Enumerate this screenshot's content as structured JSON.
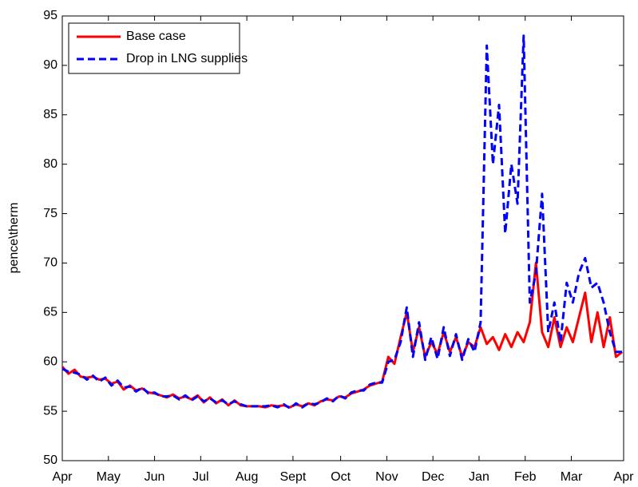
{
  "chart_data": {
    "type": "line",
    "y_label": "pence\\therm",
    "x": [
      0,
      4,
      8,
      12,
      16,
      20,
      24,
      28,
      32,
      36,
      40,
      44,
      48,
      52,
      56,
      60,
      64,
      68,
      72,
      76,
      80,
      84,
      88,
      92,
      96,
      100,
      104,
      108,
      112,
      116,
      120,
      124,
      128,
      132,
      136,
      140,
      144,
      148,
      152,
      156,
      160,
      164,
      168,
      172,
      176,
      180,
      184,
      188,
      192,
      196,
      200,
      204,
      208,
      212,
      216,
      220,
      224,
      228,
      232,
      236,
      240,
      244,
      248,
      252,
      256,
      260,
      264,
      268,
      272,
      276,
      280,
      284,
      288,
      292,
      296,
      300,
      304,
      308,
      312,
      316,
      320,
      324,
      328,
      332,
      336,
      340,
      344,
      348,
      352,
      356,
      360,
      364
    ],
    "series": [
      {
        "name": "Base case",
        "color": "#ff0000",
        "dashed": false,
        "values": [
          59.5,
          58.8,
          59.2,
          58.5,
          58.4,
          58.5,
          58.2,
          58.3,
          57.8,
          58.0,
          57.2,
          57.6,
          57.1,
          57.3,
          56.9,
          56.8,
          56.6,
          56.4,
          56.7,
          56.3,
          56.5,
          56.2,
          56.6,
          55.9,
          56.4,
          55.8,
          56.2,
          55.6,
          56.1,
          55.6,
          55.5,
          55.5,
          55.5,
          55.4,
          55.6,
          55.5,
          55.6,
          55.4,
          55.7,
          55.5,
          55.8,
          55.6,
          56.0,
          56.2,
          56.1,
          56.5,
          56.4,
          56.8,
          57.0,
          57.2,
          57.6,
          57.8,
          58.0,
          60.5,
          59.8,
          62.5,
          65.0,
          61.0,
          63.5,
          60.5,
          62.0,
          60.8,
          63.0,
          61.0,
          62.5,
          60.5,
          62.0,
          61.5,
          63.5,
          61.8,
          62.5,
          61.2,
          62.8,
          61.5,
          63.0,
          62.0,
          64.0,
          70.0,
          63.0,
          61.5,
          64.5,
          61.5,
          63.5,
          62.0,
          64.5,
          67.0,
          62.0,
          65.0,
          61.5,
          64.5,
          60.5,
          61.0
        ]
      },
      {
        "name": "Drop in LNG supplies",
        "color": "#0000ff",
        "dashed": true,
        "values": [
          59.3,
          59.0,
          58.9,
          58.7,
          58.2,
          58.6,
          58.0,
          58.4,
          57.6,
          58.1,
          57.4,
          57.5,
          57.0,
          57.4,
          56.8,
          56.9,
          56.5,
          56.5,
          56.6,
          56.2,
          56.6,
          56.1,
          56.5,
          56.0,
          56.3,
          55.9,
          56.1,
          55.7,
          56.0,
          55.7,
          55.5,
          55.5,
          55.5,
          55.5,
          55.6,
          55.4,
          55.7,
          55.3,
          55.8,
          55.4,
          55.8,
          55.7,
          55.9,
          56.3,
          56.0,
          56.6,
          56.3,
          56.9,
          57.1,
          57.1,
          57.7,
          57.9,
          57.9,
          60.0,
          60.2,
          62.0,
          65.5,
          60.5,
          64.0,
          60.2,
          62.5,
          60.3,
          63.5,
          60.6,
          62.8,
          60.2,
          62.3,
          61.0,
          64.0,
          92.0,
          80.0,
          86.0,
          73.0,
          80.0,
          76.0,
          93.0,
          66.0,
          69.0,
          77.0,
          63.0,
          66.0,
          62.0,
          68.0,
          66.0,
          69.0,
          70.5,
          67.5,
          68.0,
          66.0,
          63.0,
          61.0,
          61.0
        ]
      }
    ],
    "xlim": [
      0,
      365
    ],
    "xticks": [
      {
        "value": 0,
        "label": "Apr"
      },
      {
        "value": 30,
        "label": "May"
      },
      {
        "value": 60,
        "label": "Jun"
      },
      {
        "value": 90,
        "label": "Jul"
      },
      {
        "value": 120,
        "label": "Aug"
      },
      {
        "value": 150,
        "label": "Sept"
      },
      {
        "value": 181,
        "label": "Oct"
      },
      {
        "value": 211,
        "label": "Nov"
      },
      {
        "value": 241,
        "label": "Dec"
      },
      {
        "value": 271,
        "label": "Jan"
      },
      {
        "value": 301,
        "label": "Feb"
      },
      {
        "value": 331,
        "label": "Mar"
      },
      {
        "value": 365,
        "label": "Apr"
      }
    ],
    "ylim": [
      50,
      95
    ],
    "yticks": [
      50,
      55,
      60,
      65,
      70,
      75,
      80,
      85,
      90,
      95
    ],
    "legend": "upper-left"
  }
}
